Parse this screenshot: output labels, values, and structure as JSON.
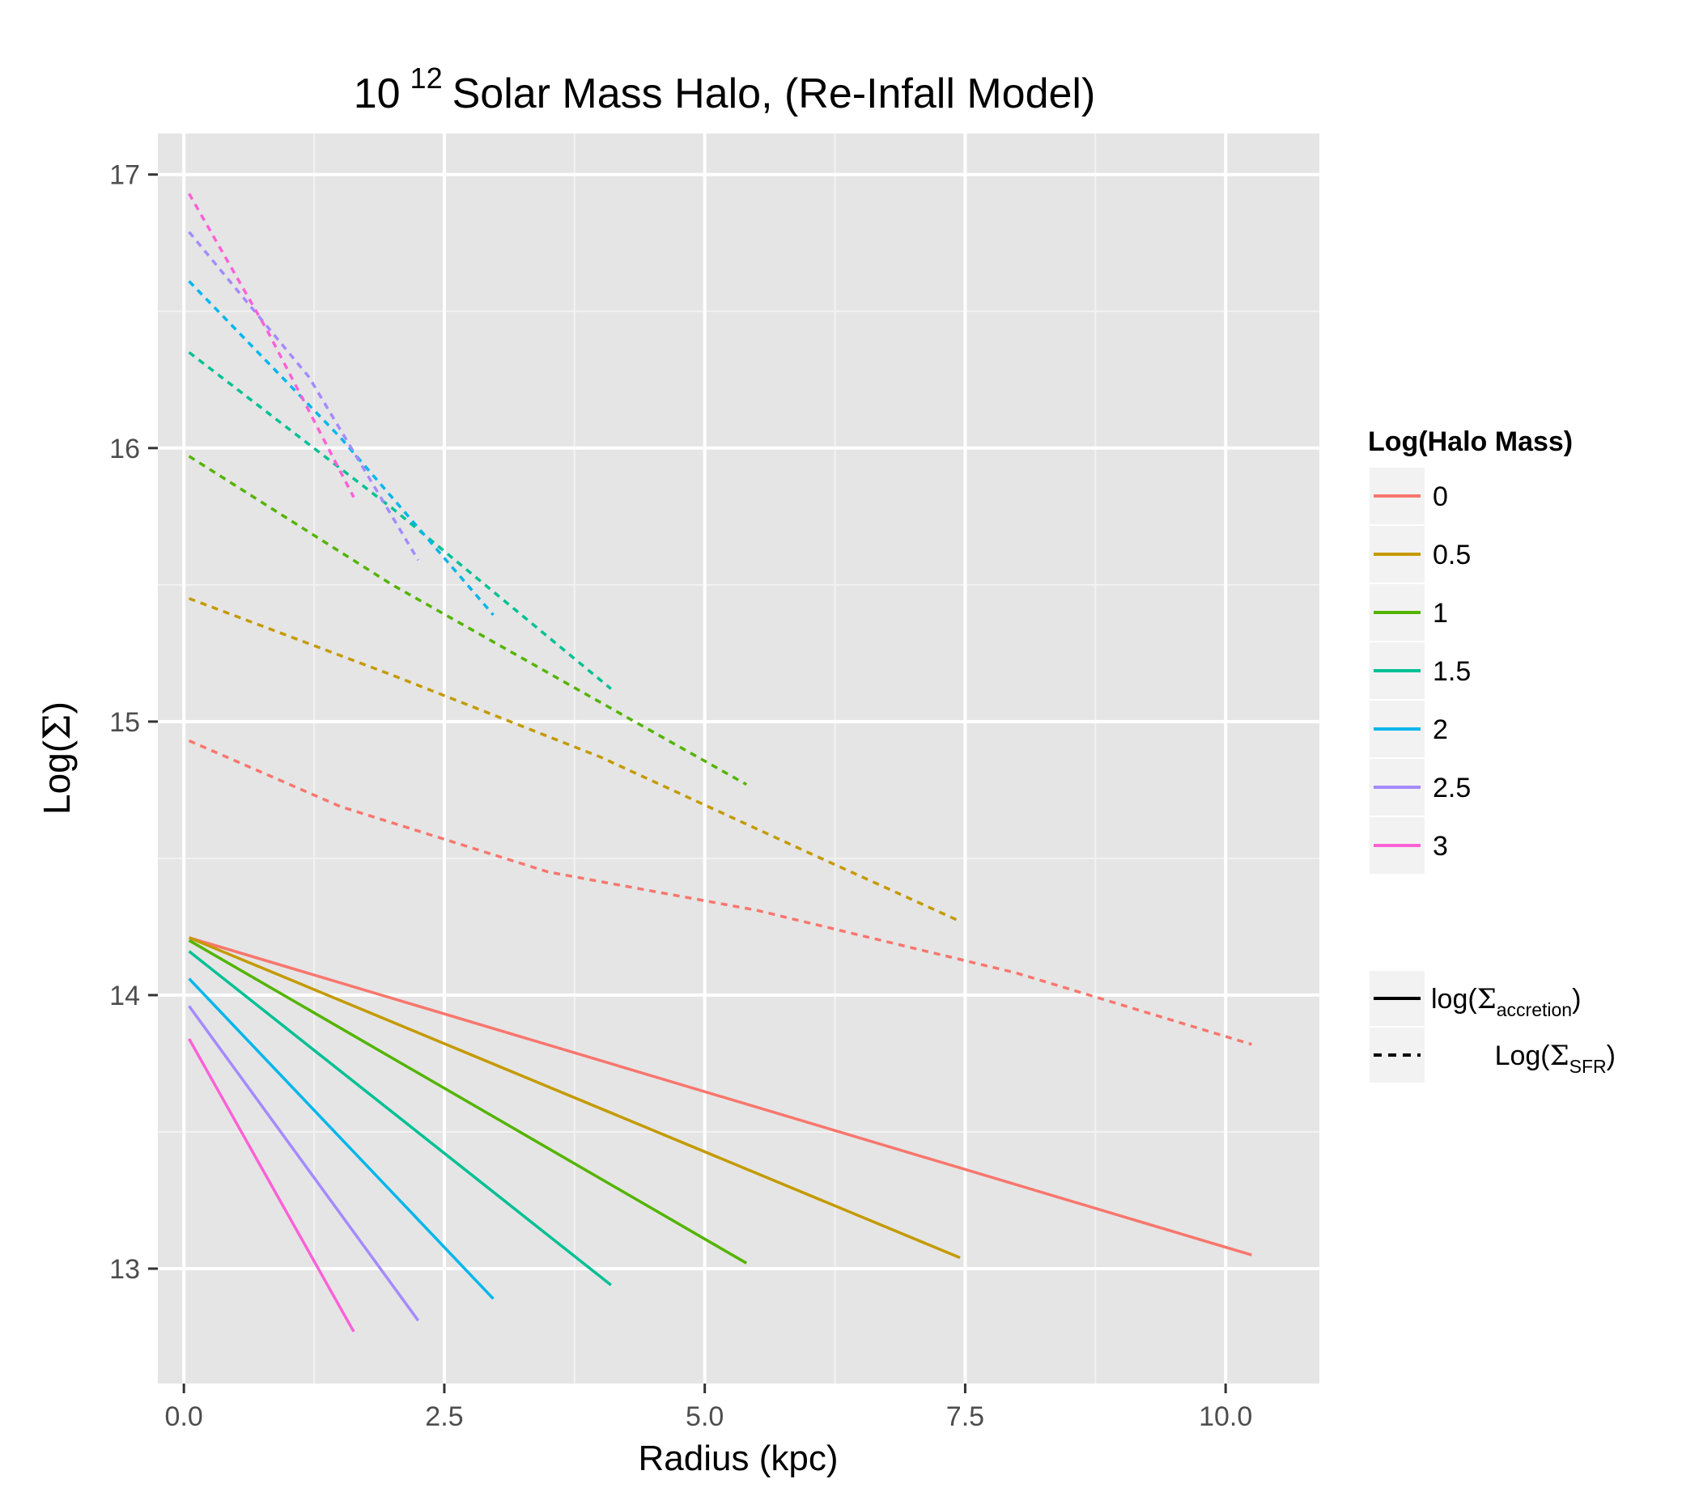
{
  "chart_data": {
    "type": "line",
    "title": {
      "prefix": "10",
      "superscript": "12",
      "rest": "Solar Mass Halo, (Re-Infall Model)"
    },
    "xlabel": "Radius (kpc)",
    "ylabel": {
      "prefix": "Log(",
      "symbol": "Σ",
      "suffix": ")"
    },
    "xlim": [
      -0.25,
      10.9
    ],
    "ylim": [
      12.58,
      17.15
    ],
    "x_ticks": [
      0,
      2.5,
      5,
      7.5,
      10
    ],
    "x_tick_labels": [
      "0.0",
      "2.5",
      "5.0",
      "7.5",
      "10.0"
    ],
    "y_ticks": [
      13,
      14,
      15,
      16,
      17
    ],
    "y_tick_labels": [
      "13",
      "14",
      "15",
      "16",
      "17"
    ],
    "grid": true,
    "legend_position": "right",
    "legend": {
      "color_title": "Log(Halo Mass)",
      "color_entries": [
        "0",
        "0.5",
        "1",
        "1.5",
        "2",
        "2.5",
        "3"
      ],
      "linetype_entries": [
        {
          "style": "solid",
          "base": "log(",
          "symbol": "Σ",
          "sub": "accretion",
          "close": ")"
        },
        {
          "style": "dashed",
          "base": "Log(",
          "symbol": "Σ",
          "sub": "SFR",
          "close": ")"
        }
      ]
    },
    "colors": [
      "#F8766D",
      "#C49A00",
      "#53B400",
      "#00C094",
      "#00B6EB",
      "#A58AFF",
      "#FB61D7"
    ],
    "series": [
      {
        "name": "0",
        "linetype": "solid",
        "x": [
          0.05,
          10.25
        ],
        "y": [
          14.21,
          13.05
        ]
      },
      {
        "name": "0.5",
        "linetype": "solid",
        "x": [
          0.05,
          7.45
        ],
        "y": [
          14.21,
          13.04
        ]
      },
      {
        "name": "1",
        "linetype": "solid",
        "x": [
          0.05,
          5.4
        ],
        "y": [
          14.2,
          13.02
        ]
      },
      {
        "name": "1.5",
        "linetype": "solid",
        "x": [
          0.05,
          4.1
        ],
        "y": [
          14.16,
          12.94
        ]
      },
      {
        "name": "2",
        "linetype": "solid",
        "x": [
          0.05,
          2.97
        ],
        "y": [
          14.06,
          12.89
        ]
      },
      {
        "name": "2.5",
        "linetype": "solid",
        "x": [
          0.05,
          2.25
        ],
        "y": [
          13.96,
          12.81
        ]
      },
      {
        "name": "3",
        "linetype": "solid",
        "x": [
          0.05,
          1.63
        ],
        "y": [
          13.84,
          12.77
        ]
      },
      {
        "name": "0",
        "linetype": "dashed",
        "x": [
          0.05,
          1.5,
          3.5,
          5.5,
          8.0,
          10.25
        ],
        "y": [
          14.93,
          14.69,
          14.45,
          14.31,
          14.08,
          13.82
        ]
      },
      {
        "name": "0.5",
        "linetype": "dashed",
        "x": [
          0.05,
          2.0,
          4.0,
          6.0,
          7.45
        ],
        "y": [
          15.45,
          15.17,
          14.87,
          14.52,
          14.27
        ]
      },
      {
        "name": "1",
        "linetype": "dashed",
        "x": [
          0.05,
          2.0,
          4.0,
          5.4
        ],
        "y": [
          15.97,
          15.5,
          15.07,
          14.77
        ]
      },
      {
        "name": "1.5",
        "linetype": "dashed",
        "x": [
          0.05,
          2.0,
          4.1
        ],
        "y": [
          16.35,
          15.78,
          15.12
        ]
      },
      {
        "name": "2",
        "linetype": "dashed",
        "x": [
          0.05,
          1.5,
          2.97
        ],
        "y": [
          16.61,
          16.04,
          15.39
        ]
      },
      {
        "name": "2.5",
        "linetype": "dashed",
        "x": [
          0.05,
          1.2,
          2.25
        ],
        "y": [
          16.79,
          16.26,
          15.59
        ]
      },
      {
        "name": "3",
        "linetype": "dashed",
        "x": [
          0.05,
          0.8,
          1.63
        ],
        "y": [
          16.93,
          16.43,
          15.82
        ]
      }
    ]
  }
}
